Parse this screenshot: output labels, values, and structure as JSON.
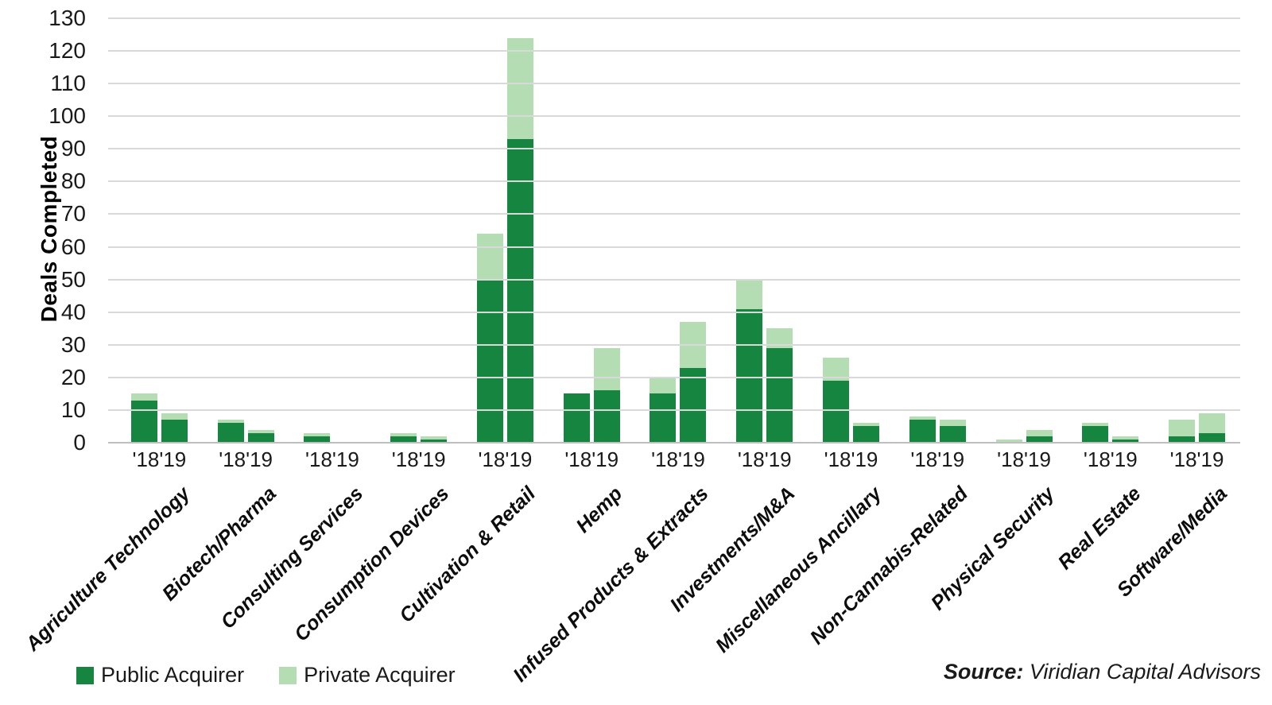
{
  "chart_data": {
    "type": "bar",
    "stacked": true,
    "ylabel": "Deals Completed",
    "ylim": [
      0,
      130
    ],
    "ytick_step": 10,
    "grid": "horizontal",
    "legend_position": "bottom-left",
    "year_tick_labels": [
      "'18",
      "'19"
    ],
    "categories": [
      "Agriculture Technology",
      "Biotech/Pharma",
      "Consulting Services",
      "Consumption Devices",
      "Cultivation & Retail",
      "Hemp",
      "Infused Products & Extracts",
      "Investments/M&A",
      "Miscellaneous Ancillary",
      "Non-Cannabis-Related",
      "Physical Security",
      "Real Estate",
      "Software/Media"
    ],
    "series": [
      {
        "name": "Public Acquirer",
        "color": "#168540",
        "values_2018": [
          13,
          6,
          2,
          2,
          50,
          15,
          15,
          41,
          19,
          7,
          0,
          5,
          2
        ],
        "values_2019": [
          7,
          3,
          0,
          1,
          93,
          16,
          23,
          29,
          5,
          5,
          2,
          1,
          3
        ]
      },
      {
        "name": "Private Acquirer",
        "color": "#b5ddb3",
        "values_2018": [
          2,
          1,
          1,
          1,
          14,
          0,
          5,
          9,
          7,
          1,
          1,
          1,
          5
        ],
        "values_2019": [
          2,
          1,
          0,
          1,
          31,
          13,
          14,
          6,
          1,
          2,
          2,
          1,
          6
        ]
      }
    ],
    "colors": {
      "gridline": "#d9d9d9",
      "axis_line": "#bfbfbf",
      "text": "#1a1a1a"
    }
  },
  "legend": {
    "public_label": "Public Acquirer",
    "private_label": "Private Acquirer"
  },
  "source": {
    "prefix": "Source:",
    "text": " Viridian Capital Advisors"
  }
}
